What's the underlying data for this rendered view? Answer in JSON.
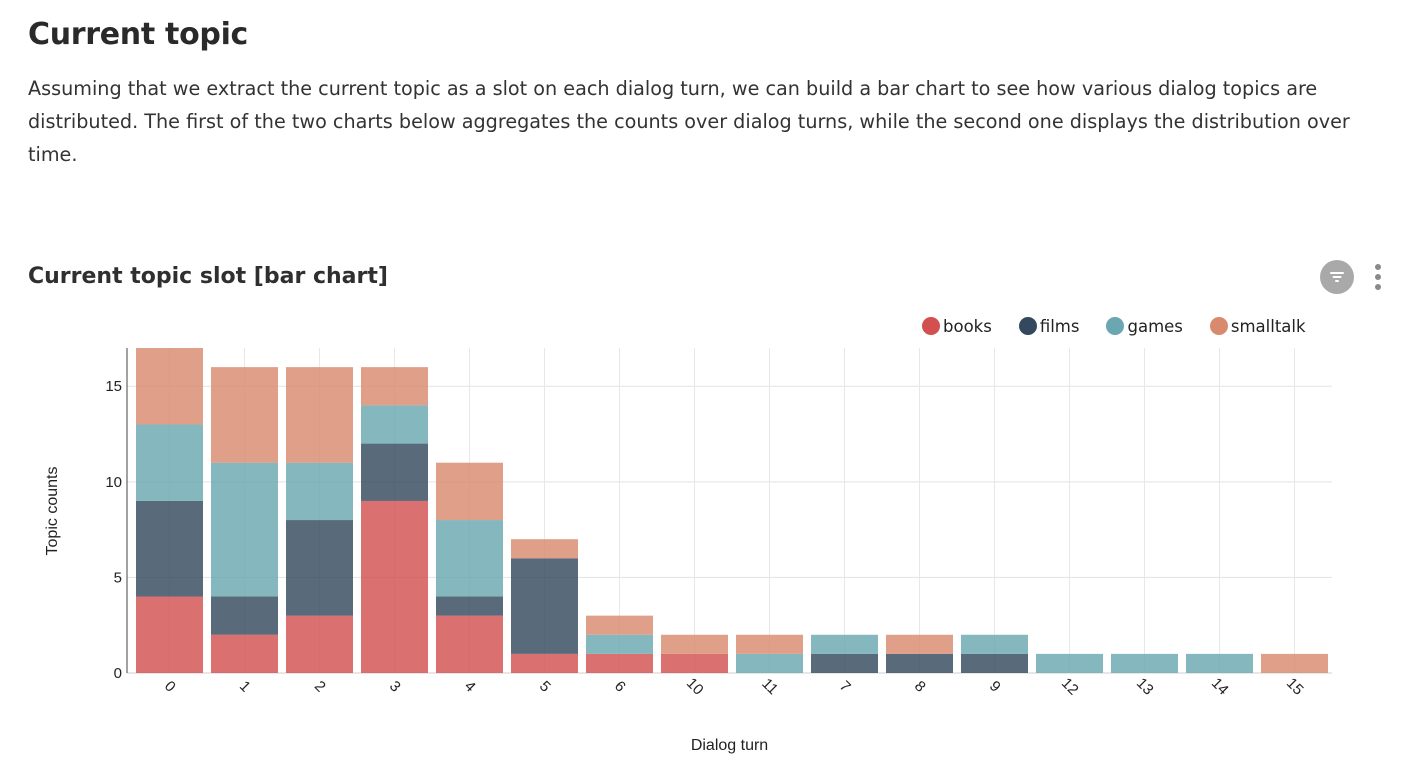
{
  "section": {
    "title": "Current topic",
    "intro": "Assuming that we extract the current topic as a slot on each dialog turn, we can build a bar chart to see how various dialog topics are distributed. The first of the two charts below aggregates the counts over dialog turns, while the second one displays the distribution over time."
  },
  "chart_header": {
    "title": "Current topic slot [bar chart]",
    "filter_icon": "filter-icon",
    "more_icon": "more-vertical-icon"
  },
  "colors": {
    "books": "#d2504f",
    "films": "#34495e",
    "games": "#6aa7b0",
    "smalltalk": "#d98a6e"
  },
  "chart_data": {
    "type": "bar",
    "stacked": true,
    "xlabel": "Dialog turn",
    "ylabel": "Topic counts",
    "ylim": [
      0,
      17
    ],
    "yticks": [
      0,
      5,
      10,
      15
    ],
    "grid": true,
    "legend_position": "top-right",
    "categories": [
      "0",
      "1",
      "2",
      "3",
      "4",
      "5",
      "6",
      "10",
      "11",
      "7",
      "8",
      "9",
      "12",
      "13",
      "14",
      "15"
    ],
    "series": [
      {
        "name": "books",
        "values": [
          4,
          2,
          3,
          9,
          3,
          1,
          1,
          1,
          0,
          0,
          0,
          0,
          0,
          0,
          0,
          0
        ]
      },
      {
        "name": "films",
        "values": [
          5,
          2,
          5,
          3,
          1,
          5,
          0,
          0,
          0,
          1,
          1,
          1,
          0,
          0,
          0,
          0
        ]
      },
      {
        "name": "games",
        "values": [
          4,
          7,
          3,
          2,
          4,
          0,
          1,
          0,
          1,
          1,
          0,
          1,
          1,
          1,
          1,
          0
        ]
      },
      {
        "name": "smalltalk",
        "values": [
          4,
          5,
          5,
          2,
          3,
          1,
          1,
          1,
          1,
          0,
          1,
          0,
          0,
          0,
          0,
          1
        ]
      }
    ]
  }
}
